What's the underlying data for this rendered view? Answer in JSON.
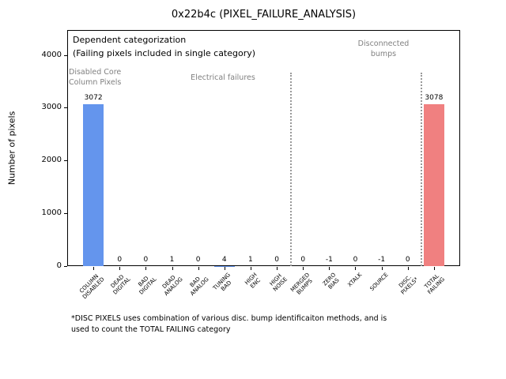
{
  "chart_data": {
    "type": "bar",
    "title": "0x22b4c (PIXEL_FAILURE_ANALYSIS)",
    "ylabel": "Number of pixels",
    "xlabel": "",
    "ylim": [
      0,
      4480
    ],
    "yticks": [
      0,
      1000,
      2000,
      3000,
      4000
    ],
    "grid": false,
    "legend": false,
    "categories": [
      "COLUMN\nDISABLED",
      "DEAD\nDIGITAL",
      "BAD\nDIGITAL",
      "DEAD\nANALOG",
      "BAD\nANALOG",
      "TUNING\nBAD",
      "HIGH\nENC",
      "HIGH\nNOISE",
      "MERGED\nBUMPS",
      "ZERO\nBIAS",
      "XTALK",
      "SOURCE",
      "DISC.\nPIXELS*",
      "TOTAL\nFAILING"
    ],
    "values": [
      3072,
      0,
      0,
      1,
      0,
      4,
      1,
      0,
      0,
      -1,
      0,
      -1,
      0,
      3078
    ],
    "value_labels": [
      "3072",
      "0",
      "0",
      "1",
      "0",
      "4",
      "1",
      "0",
      "0",
      "-1",
      "0",
      "-1",
      "0",
      "3078"
    ],
    "bar_colors": [
      "#6495ed",
      "#6495ed",
      "#6495ed",
      "#6495ed",
      "#6495ed",
      "#6495ed",
      "#6495ed",
      "#6495ed",
      "#6495ed",
      "#6495ed",
      "#6495ed",
      "#6495ed",
      "#6495ed",
      "#f08080"
    ],
    "separators_after_index": [
      7,
      12
    ],
    "separator_color": "#999999",
    "annotations": [
      {
        "text": "Dependent categorization\n(Failing pixels included in single category)",
        "color": "#000000"
      },
      {
        "text": "Disabled Core\nColumn Pixels",
        "color": "#808080"
      },
      {
        "text": "Electrical failures",
        "color": "#808080"
      },
      {
        "text": "Disconnected\nbumps",
        "color": "#808080"
      }
    ]
  },
  "footnote": "*DISC PIXELS uses combination of various disc. bump identificaiton methods, and is\nused to count the TOTAL FAILING category"
}
